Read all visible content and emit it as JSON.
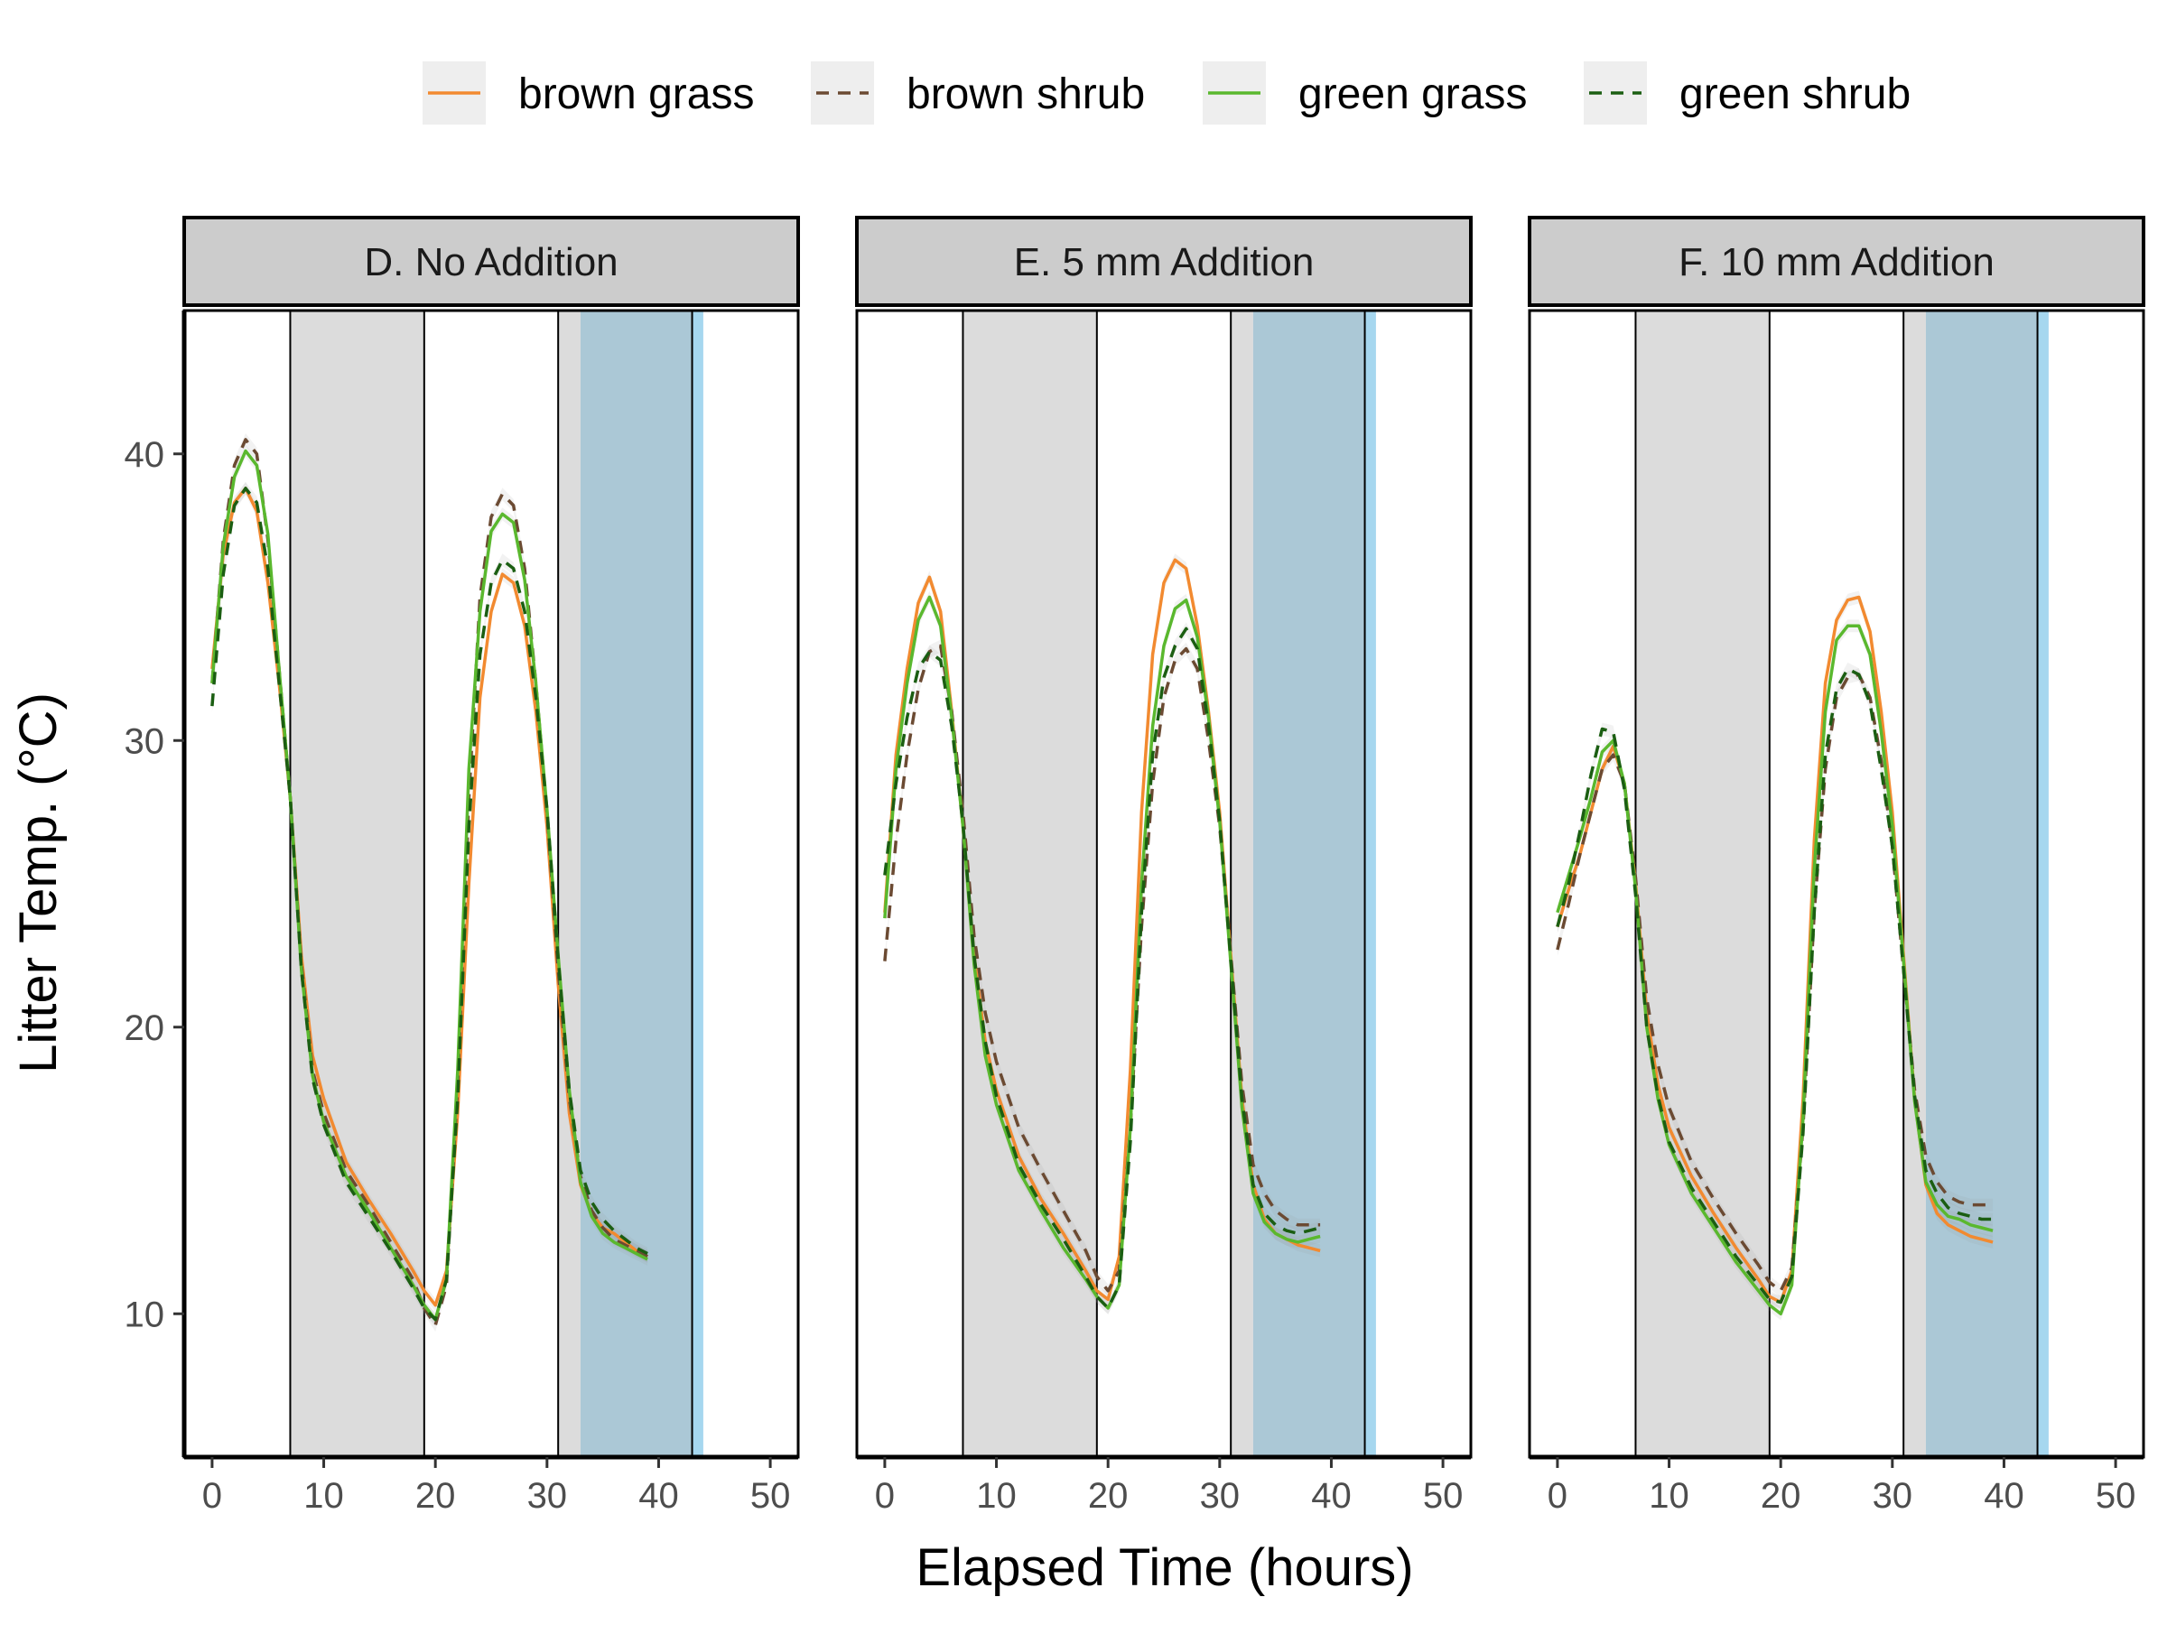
{
  "chart_data": {
    "type": "line",
    "xlabel": "Elapsed Time (hours)",
    "ylabel": "Litter Temp. (°C)",
    "xlim": [
      -2.5,
      52.5
    ],
    "ylim": [
      5,
      45
    ],
    "xticks": [
      0,
      10,
      20,
      30,
      40,
      50
    ],
    "yticks": [
      10,
      20,
      30,
      40
    ],
    "legend_position": "top",
    "series_styles": [
      {
        "name": "brown grass",
        "color": "#f28a30",
        "dash": "solid"
      },
      {
        "name": "brown shrub",
        "color": "#6b4a32",
        "dash": "dashed"
      },
      {
        "name": "green grass",
        "color": "#5ab82e",
        "dash": "solid"
      },
      {
        "name": "green shrub",
        "color": "#1b5e12",
        "dash": "dashed"
      }
    ],
    "shading": {
      "night_bands": [
        [
          7,
          19
        ],
        [
          31,
          33
        ]
      ],
      "night_color": "#dcdcdc",
      "rain_band": [
        33,
        43
      ],
      "rain_color": "#abc8d6",
      "rain_edge_band": [
        43,
        44
      ],
      "rain_edge_color": "#a6d7ef",
      "vertical_lines": [
        7,
        19,
        31,
        43
      ]
    },
    "facets": [
      {
        "label": "D. No Addition",
        "series": [
          {
            "name": "brown grass",
            "x": [
              0,
              1,
              2,
              3,
              4,
              5,
              6,
              7,
              8,
              9,
              10,
              12,
              14,
              16,
              18,
              19,
              20,
              21,
              22,
              23,
              24,
              25,
              26,
              27,
              28,
              29,
              30,
              31,
              32,
              33,
              34,
              35,
              36,
              37,
              38,
              39
            ],
            "y": [
              32.5,
              36.5,
              38.3,
              38.8,
              38,
              35.5,
              32,
              28,
              22.5,
              19,
              17.5,
              15.3,
              14,
              12.8,
              11.5,
              10.8,
              10.3,
              11.5,
              17,
              25,
              31.5,
              34.5,
              35.8,
              35.5,
              34,
              31,
              27,
              21.5,
              17,
              14.5,
              13.5,
              13,
              12.8,
              12.5,
              12.2,
              12
            ]
          },
          {
            "name": "brown shrub",
            "x": [
              0,
              1,
              2,
              3,
              4,
              5,
              6,
              7,
              8,
              9,
              10,
              12,
              14,
              16,
              18,
              19,
              20,
              21,
              22,
              23,
              24,
              25,
              26,
              27,
              28,
              29,
              30,
              31,
              32,
              33,
              34,
              35,
              36,
              37,
              38,
              39
            ],
            "y": [
              32,
              37,
              39.6,
              40.5,
              40,
              37,
              32.5,
              28,
              22.2,
              18.5,
              17,
              15,
              13.8,
              12.5,
              11.2,
              10.2,
              9.6,
              11,
              18,
              28,
              35,
              37.8,
              38.6,
              38.2,
              36,
              32,
              27.5,
              22,
              17.5,
              14.8,
              13.6,
              13,
              12.6,
              12.4,
              12.2,
              12
            ]
          },
          {
            "name": "green grass",
            "x": [
              0,
              1,
              2,
              3,
              4,
              5,
              6,
              7,
              8,
              9,
              10,
              12,
              14,
              16,
              18,
              19,
              20,
              21,
              22,
              23,
              24,
              25,
              26,
              27,
              28,
              29,
              30,
              31,
              32,
              33,
              34,
              35,
              36,
              37,
              38,
              39
            ],
            "y": [
              32,
              36.8,
              39.2,
              40.1,
              39.6,
              37.2,
              32.5,
              28,
              22,
              18.3,
              16.7,
              14.8,
              13.6,
              12.3,
              11,
              10.3,
              9.8,
              11.2,
              18.5,
              29,
              34.5,
              37.3,
              37.9,
              37.6,
              35.6,
              32,
              27.6,
              22.5,
              17.8,
              14.6,
              13.4,
              12.8,
              12.5,
              12.3,
              12.1,
              11.9
            ]
          },
          {
            "name": "green shrub",
            "x": [
              0,
              1,
              2,
              3,
              4,
              5,
              6,
              7,
              8,
              9,
              10,
              12,
              14,
              16,
              18,
              19,
              20,
              21,
              22,
              23,
              24,
              25,
              26,
              27,
              28,
              29,
              30,
              31,
              32,
              33,
              34,
              35,
              36,
              37,
              38,
              39
            ],
            "y": [
              31.2,
              35.8,
              38.2,
              38.8,
              38.3,
              36,
              32,
              28,
              22,
              18.2,
              16.6,
              14.6,
              13.4,
              12.2,
              10.9,
              10.2,
              9.8,
              11.2,
              17.5,
              27,
              33,
              35.5,
              36.3,
              36,
              34.5,
              31.5,
              27.6,
              22.4,
              17.8,
              15,
              13.9,
              13.3,
              12.9,
              12.6,
              12.3,
              12.1
            ]
          }
        ]
      },
      {
        "label": "E. 5 mm Addition",
        "series": [
          {
            "name": "brown grass",
            "x": [
              0,
              1,
              2,
              3,
              4,
              5,
              6,
              7,
              8,
              9,
              10,
              12,
              14,
              16,
              18,
              19,
              20,
              21,
              22,
              23,
              24,
              25,
              26,
              27,
              28,
              29,
              30,
              31,
              32,
              33,
              34,
              35,
              36,
              37,
              38,
              39
            ],
            "y": [
              24,
              29.5,
              32.5,
              34.8,
              35.7,
              34.5,
              31,
              27,
              22.5,
              19.5,
              17.8,
              15.5,
              14,
              12.8,
              11.5,
              10.8,
              10.5,
              12,
              18.5,
              27.5,
              33,
              35.5,
              36.3,
              36,
              34,
              31,
              27.5,
              22.5,
              17.5,
              14.5,
              13.3,
              12.8,
              12.6,
              12.4,
              12.3,
              12.2
            ]
          },
          {
            "name": "brown shrub",
            "x": [
              0,
              1,
              2,
              3,
              4,
              5,
              6,
              7,
              8,
              9,
              10,
              12,
              14,
              16,
              18,
              19,
              20,
              21,
              22,
              23,
              24,
              25,
              26,
              27,
              28,
              29,
              30,
              31,
              32,
              33,
              34,
              35,
              36,
              37,
              38,
              39
            ],
            "y": [
              22.3,
              26.5,
              29.5,
              31.8,
              33.1,
              33.3,
              31,
              27.5,
              23.2,
              20.5,
              18.8,
              16.5,
              15,
              13.6,
              12.2,
              11.3,
              10.8,
              11.5,
              16.5,
              23.5,
              28.5,
              31.5,
              32.8,
              33.2,
              32.5,
              30,
              27,
              22.5,
              18,
              15.2,
              14.2,
              13.6,
              13.3,
              13.1,
              13.1,
              13.1
            ]
          },
          {
            "name": "green grass",
            "x": [
              0,
              1,
              2,
              3,
              4,
              5,
              6,
              7,
              8,
              9,
              10,
              12,
              14,
              16,
              18,
              19,
              20,
              21,
              22,
              23,
              24,
              25,
              26,
              27,
              28,
              29,
              30,
              31,
              32,
              33,
              34,
              35,
              36,
              37,
              38,
              39
            ],
            "y": [
              23.8,
              29,
              32,
              34.2,
              35,
              34,
              30.8,
              27,
              22.2,
              19,
              17.3,
              15,
              13.6,
              12.3,
              11.2,
              10.6,
              10.2,
              11,
              16.5,
              25,
              30.5,
              33.3,
              34.6,
              34.9,
              33.6,
              30.8,
              27.2,
              22.2,
              17.2,
              14.2,
              13.2,
              12.8,
              12.6,
              12.5,
              12.6,
              12.7
            ]
          },
          {
            "name": "green shrub",
            "x": [
              0,
              1,
              2,
              3,
              4,
              5,
              6,
              7,
              8,
              9,
              10,
              12,
              14,
              16,
              18,
              19,
              20,
              21,
              22,
              23,
              24,
              25,
              26,
              27,
              28,
              29,
              30,
              31,
              32,
              33,
              34,
              35,
              36,
              37,
              38,
              39
            ],
            "y": [
              25.3,
              28.5,
              30.8,
              32.5,
              33.1,
              32.8,
              30.5,
              27.1,
              22.5,
              19.5,
              17.6,
              15.2,
              13.8,
              12.6,
              11.3,
              10.6,
              10.2,
              11,
              16,
              24,
              29.5,
              32.2,
              33.3,
              33.9,
              33.2,
              30.5,
              27.2,
              22.3,
              17.5,
              14.5,
              13.5,
              13.1,
              12.9,
              12.8,
              12.9,
              13
            ]
          }
        ]
      },
      {
        "label": "F. 10 mm Addition",
        "series": [
          {
            "name": "brown grass",
            "x": [
              0,
              1,
              2,
              3,
              4,
              5,
              6,
              7,
              8,
              9,
              10,
              12,
              14,
              16,
              18,
              19,
              20,
              21,
              22,
              23,
              24,
              25,
              26,
              27,
              28,
              29,
              30,
              31,
              32,
              33,
              34,
              35,
              36,
              37,
              38,
              39
            ],
            "y": [
              23.5,
              24.8,
              26,
              27.5,
              29,
              29.8,
              28.5,
              25,
              20.5,
              18,
              16.5,
              14.8,
              13.5,
              12.3,
              11.2,
              10.6,
              10.4,
              11.5,
              17.5,
              26.5,
              32,
              34.2,
              34.9,
              35,
              33.8,
              31,
              27.5,
              22.5,
              17.5,
              14.5,
              13.5,
              13.1,
              12.9,
              12.7,
              12.6,
              12.5
            ]
          },
          {
            "name": "brown shrub",
            "x": [
              0,
              1,
              2,
              3,
              4,
              5,
              6,
              7,
              8,
              9,
              10,
              12,
              14,
              16,
              18,
              19,
              20,
              21,
              22,
              23,
              24,
              25,
              26,
              27,
              28,
              29,
              30,
              31,
              32,
              33,
              34,
              35,
              36,
              37,
              38,
              39
            ],
            "y": [
              22.7,
              24.3,
              26,
              27.5,
              29,
              29.5,
              28.5,
              25.2,
              21,
              18.7,
              17.2,
              15.3,
              14,
              12.8,
              11.7,
              11.1,
              10.8,
              11.6,
              16.5,
              24,
              29,
              31.5,
              32.2,
              32.3,
              31.5,
              29.3,
              26.3,
              22,
              17.8,
              15.5,
              14.6,
              14.1,
              13.9,
              13.8,
              13.8,
              13.8
            ]
          },
          {
            "name": "green grass",
            "x": [
              0,
              1,
              2,
              3,
              4,
              5,
              6,
              7,
              8,
              9,
              10,
              12,
              14,
              16,
              18,
              19,
              20,
              21,
              22,
              23,
              24,
              25,
              26,
              27,
              28,
              29,
              30,
              31,
              32,
              33,
              34,
              35,
              36,
              37,
              38,
              39
            ],
            "y": [
              24,
              25.3,
              26.6,
              28,
              29.6,
              30,
              28.5,
              24.8,
              20,
              17.5,
              15.9,
              14.2,
              13,
              11.8,
              10.8,
              10.3,
              10,
              11,
              16.8,
              25.5,
              31,
              33.5,
              34,
              34,
              33,
              30.3,
              27,
              22.3,
              17.4,
              14.6,
              13.8,
              13.4,
              13.3,
              13.1,
              13,
              12.9
            ]
          },
          {
            "name": "green shrub",
            "x": [
              0,
              1,
              2,
              3,
              4,
              5,
              6,
              7,
              8,
              9,
              10,
              12,
              14,
              16,
              18,
              19,
              20,
              21,
              22,
              23,
              24,
              25,
              26,
              27,
              28,
              29,
              30,
              31,
              32,
              33,
              34,
              35,
              36,
              37,
              38,
              39
            ],
            "y": [
              23.5,
              25,
              26.8,
              28.8,
              30.4,
              30.3,
              28.3,
              24.6,
              20,
              17.6,
              16,
              14.4,
              13.2,
              12,
              11,
              10.5,
              10.4,
              11.3,
              16.3,
              24,
              29.5,
              31.8,
              32.5,
              32.3,
              31.3,
              29,
              26.3,
              22,
              17.6,
              15,
              14.2,
              13.7,
              13.5,
              13.4,
              13.3,
              13.3
            ]
          }
        ]
      }
    ]
  }
}
